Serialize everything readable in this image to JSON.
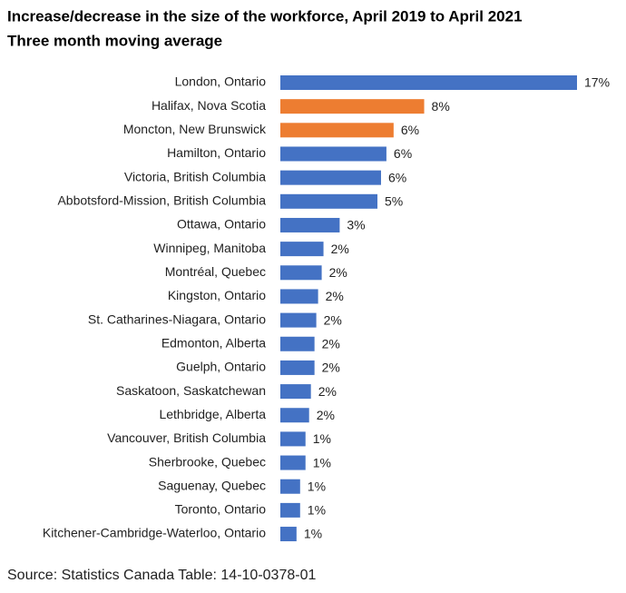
{
  "chart_data": {
    "type": "barh",
    "title": "Increase/decrease in the size of the workforce, April 2019 to April 2021",
    "subtitle": "Three month moving average",
    "source": "Source: Statistics Canada Table: 14-10-0378-01",
    "categories": [
      "London, Ontario",
      "Halifax, Nova Scotia",
      "Moncton, New Brunswick",
      "Hamilton, Ontario",
      "Victoria, British Columbia",
      "Abbotsford-Mission, British Columbia",
      "Ottawa, Ontario",
      "Winnipeg, Manitoba",
      "Montréal, Quebec",
      "Kingston, Ontario",
      "St. Catharines-Niagara, Ontario",
      "Edmonton, Alberta",
      "Guelph, Ontario",
      "Saskatoon, Saskatchewan",
      "Lethbridge, Alberta",
      "Vancouver, British Columbia",
      "Sherbrooke, Quebec",
      "Saguenay, Quebec",
      "Toronto, Ontario",
      "Kitchener-Cambridge-Waterloo, Ontario"
    ],
    "values": [
      16.5,
      8.0,
      6.3,
      5.9,
      5.6,
      5.4,
      3.3,
      2.4,
      2.3,
      2.1,
      2.0,
      1.9,
      1.9,
      1.7,
      1.6,
      1.4,
      1.4,
      1.1,
      1.1,
      0.9
    ],
    "value_labels": [
      "17%",
      "8%",
      "6%",
      "6%",
      "6%",
      "5%",
      "3%",
      "2%",
      "2%",
      "2%",
      "2%",
      "2%",
      "2%",
      "2%",
      "2%",
      "1%",
      "1%",
      "1%",
      "1%",
      "1%"
    ],
    "colors": [
      "#4472c4",
      "#ed7d31",
      "#ed7d31",
      "#4472c4",
      "#4472c4",
      "#4472c4",
      "#4472c4",
      "#4472c4",
      "#4472c4",
      "#4472c4",
      "#4472c4",
      "#4472c4",
      "#4472c4",
      "#4472c4",
      "#4472c4",
      "#4472c4",
      "#4472c4",
      "#4472c4",
      "#4472c4",
      "#4472c4"
    ]
  }
}
